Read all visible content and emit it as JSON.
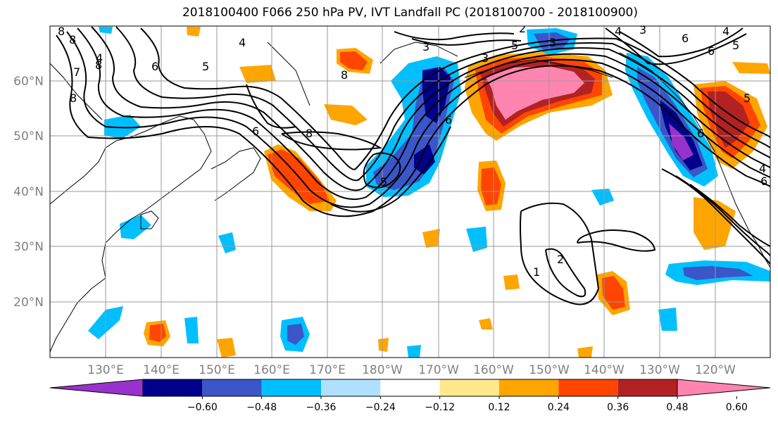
{
  "title": "2018100400 F066 250 hPa PV, IVT Landfall PC (2018100700 - 2018100900)",
  "lat_labels": [
    "60°N",
    "50°N",
    "40°N",
    "30°N",
    "20°N"
  ],
  "lon_labels": [
    "130°E",
    "140°E",
    "150°E",
    "160°E",
    "170°E",
    "180°W",
    "170°W",
    "160°W",
    "150°W",
    "140°W",
    "130°W",
    "120°W"
  ],
  "colorbar": {
    "labels": [
      "−0.60",
      "−0.48",
      "−0.36",
      "−0.24",
      "−0.12",
      "0.12",
      "0.24",
      "0.36",
      "0.48",
      "0.60"
    ],
    "colors": [
      "#9932cc",
      "#00008b",
      "#3a56c8",
      "#00bfff",
      "#b0e0ff",
      "#ffffff",
      "#ffe98a",
      "#ffa500",
      "#ff4500",
      "#b22222",
      "#ff85b0"
    ]
  },
  "contour_labels": [
    "8",
    "6",
    "5",
    "6",
    "8",
    "8",
    "6",
    "8",
    "3",
    "4",
    "2",
    "3",
    "4",
    "5",
    "6",
    "5",
    "6",
    "4",
    "3",
    "5",
    "6",
    "8",
    "4",
    "4",
    "8",
    "3",
    "7",
    "1",
    "2",
    "6",
    "5"
  ]
}
